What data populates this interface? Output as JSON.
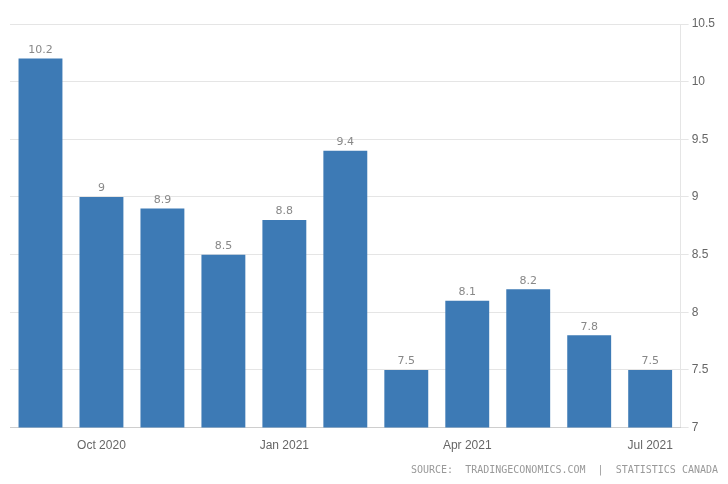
{
  "chart_data": {
    "type": "bar",
    "categories": [
      null,
      "Oct 2020",
      null,
      null,
      "Jan 2021",
      null,
      null,
      "Apr 2021",
      null,
      null,
      "Jul 2021"
    ],
    "values": [
      10.2,
      9.0,
      8.9,
      8.5,
      8.8,
      9.4,
      7.5,
      8.1,
      8.2,
      7.8,
      7.5
    ],
    "color": "#3d7ab5",
    "ylim": [
      7.0,
      10.5
    ],
    "yticks": [
      7,
      7.5,
      8,
      8.5,
      9,
      9.5,
      10,
      10.5
    ],
    "grid": true,
    "data_labels": true,
    "annotations": [
      "SOURCE:  TRADINGECONOMICS.COM  |  STATISTICS CANADA"
    ]
  }
}
